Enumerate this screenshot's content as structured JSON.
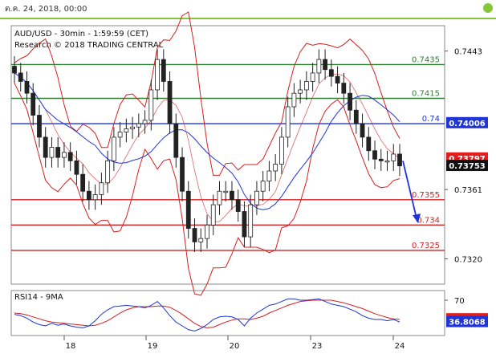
{
  "header": {
    "date": "ต.ค. 24, 2018, 00:00"
  },
  "chart_data": {
    "type": "candlestick",
    "title": "AUD/USD - 30min - 1:59:59 (CET)",
    "subtitle": "Research © 2018 TRADING CENTRAL",
    "x_tick_labels": [
      "18",
      "19",
      "20",
      "23",
      "24"
    ],
    "y_tick_labels": [
      "0.7443",
      "0.7361",
      "0.7320"
    ],
    "ylim": [
      0.7305,
      0.7458
    ],
    "levels": [
      {
        "label": "0.7435",
        "value": 0.7435,
        "color": "#2e7d32"
      },
      {
        "label": "0.7415",
        "value": 0.7415,
        "color": "#2e7d32"
      },
      {
        "label": "0.74",
        "value": 0.74,
        "color": "#1f35d6"
      },
      {
        "label": "0.7355",
        "value": 0.7355,
        "color": "#d32020"
      },
      {
        "label": "0.734",
        "value": 0.734,
        "color": "#d32020"
      },
      {
        "label": "0.7325",
        "value": 0.7325,
        "color": "#d32020"
      }
    ],
    "price_badges": [
      {
        "label": "0.74006",
        "value": 0.74006,
        "color": "#1f35d6",
        "text_color": "#ffffff"
      },
      {
        "label": "0.73797",
        "value": 0.73797,
        "color": "#e02020",
        "text_color": "#ffffff"
      },
      {
        "label": "0.73753",
        "value": 0.73753,
        "color": "#111111",
        "text_color": "#ffffff"
      }
    ],
    "close_series": [
      0.743,
      0.7425,
      0.7418,
      0.7405,
      0.7392,
      0.738,
      0.7386,
      0.738,
      0.7383,
      0.7378,
      0.737,
      0.736,
      0.7355,
      0.7358,
      0.7365,
      0.7378,
      0.7392,
      0.7395,
      0.7397,
      0.7398,
      0.74,
      0.7402,
      0.742,
      0.7438,
      0.7425,
      0.74,
      0.738,
      0.736,
      0.7338,
      0.733,
      0.7332,
      0.734,
      0.7352,
      0.736,
      0.736,
      0.7355,
      0.7348,
      0.7333,
      0.7352,
      0.736,
      0.7366,
      0.7372,
      0.7376,
      0.7392,
      0.741,
      0.7418,
      0.742,
      0.7425,
      0.743,
      0.7438,
      0.7432,
      0.7428,
      0.7424,
      0.7418,
      0.7408,
      0.74,
      0.7392,
      0.7384,
      0.7379,
      0.7378,
      0.7378,
      0.7382,
      0.7375
    ],
    "forecast_arrow": {
      "from": 0.7378,
      "to": 0.7342
    },
    "rsi": {
      "title": "RSI14 - 9MA",
      "y_tick_labels": [
        "70"
      ],
      "ylim": [
        15,
        85
      ],
      "rsi_series": [
        48,
        46,
        42,
        36,
        32,
        30,
        34,
        31,
        33,
        30,
        28,
        27,
        30,
        38,
        48,
        55,
        60,
        61,
        62,
        61,
        60,
        58,
        62,
        68,
        58,
        46,
        36,
        30,
        24,
        22,
        26,
        32,
        40,
        44,
        45,
        44,
        40,
        30,
        42,
        50,
        56,
        62,
        64,
        68,
        72,
        72,
        70,
        70,
        71,
        72,
        68,
        64,
        62,
        60,
        56,
        52,
        46,
        42,
        40,
        40,
        38,
        40,
        36
      ],
      "ma_series": [
        50,
        49,
        47,
        44,
        41,
        38,
        36,
        35,
        34,
        33,
        32,
        31,
        30,
        31,
        34,
        38,
        44,
        50,
        55,
        58,
        60,
        60,
        60,
        61,
        61,
        59,
        54,
        48,
        41,
        34,
        29,
        27,
        28,
        32,
        36,
        39,
        41,
        41,
        40,
        42,
        45,
        50,
        54,
        58,
        62,
        65,
        68,
        69,
        70,
        70,
        70,
        70,
        68,
        66,
        63,
        60,
        57,
        53,
        49,
        46,
        43,
        41,
        40
      ],
      "badges": [
        {
          "label": "41.0744",
          "value": 41.0744,
          "color": "#e02020",
          "text_color": "#ffffff"
        },
        {
          "label": "36.8068",
          "value": 36.8068,
          "color": "#1f35d6",
          "text_color": "#ffffff"
        }
      ]
    }
  }
}
